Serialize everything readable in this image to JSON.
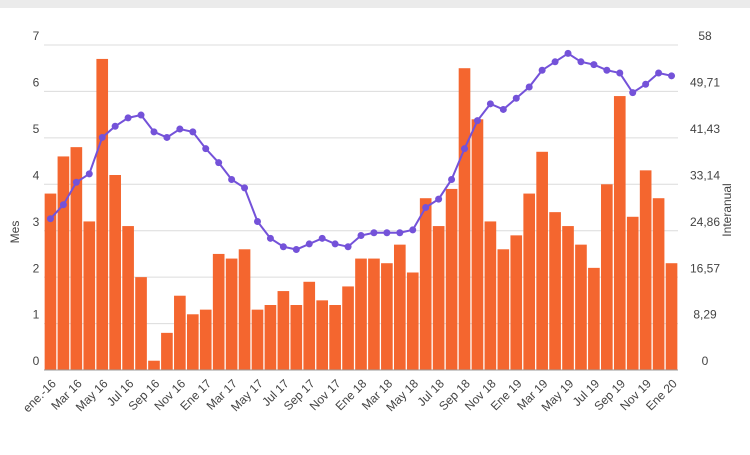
{
  "chart_data": {
    "type": "bar",
    "ylabel": "Mes",
    "y2label": "Interanual",
    "categories": [
      "ene.-16",
      null,
      "Mar 16",
      null,
      "May 16",
      null,
      "Jul 16",
      null,
      "Sep 16",
      null,
      "Nov 16",
      null,
      "Ene 17",
      null,
      "Mar 17",
      null,
      "May 17",
      null,
      "Jul 17",
      null,
      "Sep 17",
      null,
      "Nov 17",
      null,
      "Ene 18",
      null,
      "Mar 18",
      null,
      "May 18",
      null,
      "Jul 18",
      null,
      "Sep 18",
      null,
      "Nov 18",
      null,
      "Ene 19",
      null,
      "Mar 19",
      null,
      "May 19",
      null,
      "Jul 19",
      null,
      "Sep 19",
      null,
      "Nov 19",
      null,
      "Ene 20"
    ],
    "series": [
      {
        "type": "bar",
        "color": "#f4662f",
        "values": [
          3.8,
          4.6,
          4.8,
          3.2,
          6.7,
          4.2,
          3.1,
          2.0,
          0.2,
          0.8,
          1.6,
          1.2,
          1.3,
          2.5,
          2.4,
          2.6,
          1.3,
          1.4,
          1.7,
          1.4,
          1.9,
          1.5,
          1.4,
          1.8,
          2.4,
          2.4,
          2.3,
          2.7,
          2.1,
          3.7,
          3.1,
          3.9,
          6.5,
          5.4,
          3.2,
          2.6,
          2.9,
          3.8,
          4.7,
          3.4,
          3.1,
          2.7,
          2.2,
          4.0,
          5.9,
          3.3,
          4.3,
          3.7,
          2.3
        ]
      },
      {
        "type": "line",
        "axis": "y2",
        "color": "#7452d9",
        "values": [
          27,
          29.5,
          33.5,
          35,
          41.5,
          43.5,
          45,
          45.5,
          42.5,
          41.5,
          43,
          42.5,
          39.5,
          37,
          34,
          32.5,
          26.5,
          23.5,
          22,
          21.5,
          22.5,
          23.5,
          22.5,
          22,
          24,
          24.5,
          24.5,
          24.5,
          25,
          29,
          30.5,
          34,
          39.5,
          44.5,
          47.5,
          46.5,
          48.5,
          50.5,
          53.5,
          55,
          56.5,
          55,
          54.5,
          53.5,
          53,
          49.5,
          51,
          53,
          52.5
        ]
      }
    ],
    "ylim": [
      0,
      7
    ],
    "yticks": [
      0,
      1,
      2,
      3,
      4,
      5,
      6,
      7
    ],
    "y2lim": [
      0,
      58
    ],
    "y2ticks": [
      0,
      {
        "value": 8.29,
        "label": "8,29"
      },
      {
        "value": 16.57,
        "label": "16,57"
      },
      {
        "value": 24.86,
        "label": "24,86"
      },
      {
        "value": 33.14,
        "label": "33,14"
      },
      {
        "value": 41.43,
        "label": "41,43"
      },
      {
        "value": 49.71,
        "label": "49,71"
      },
      58
    ],
    "grid": true
  }
}
